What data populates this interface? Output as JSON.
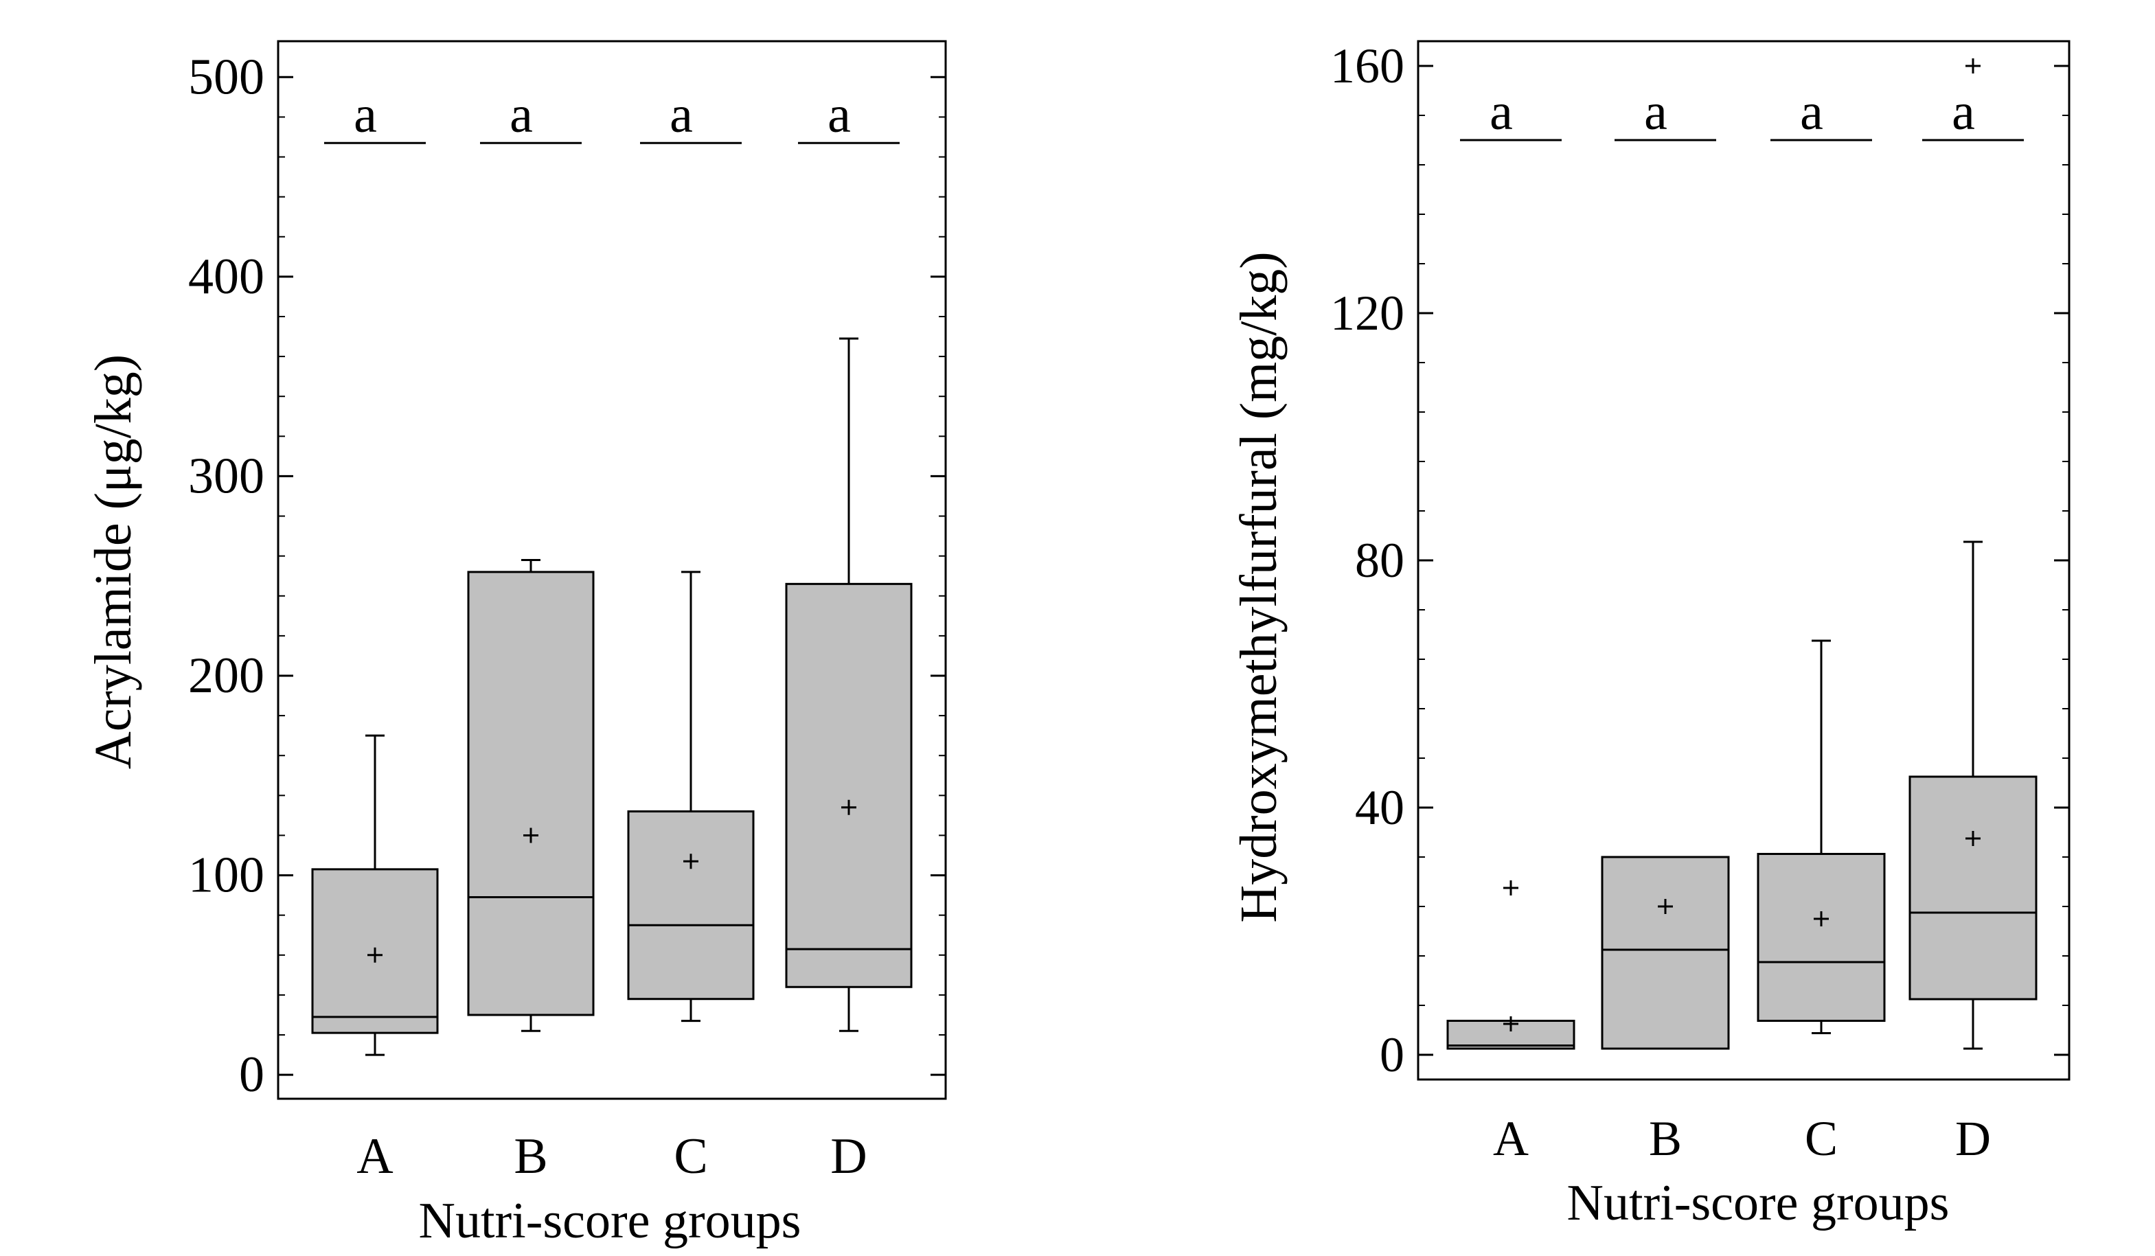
{
  "colors": {
    "box_fill": "#c0c0c0",
    "stroke": "#000000",
    "background": "#ffffff"
  },
  "chart_data": [
    {
      "type": "boxplot",
      "ylabel": "Acrylamide (μg/kg)",
      "xlabel": "Nutri-score groups",
      "categories": [
        "A",
        "B",
        "C",
        "D"
      ],
      "ylim": [
        -12,
        518
      ],
      "yticks": [
        0,
        100,
        200,
        300,
        400,
        500
      ],
      "ytick_labels": [
        "0",
        "100",
        "200",
        "300",
        "400",
        "500"
      ],
      "minor_tick_step": 20,
      "significance_letters": [
        "a",
        "a",
        "a",
        "a"
      ],
      "significance_line_value": 467,
      "boxes": [
        {
          "group": "A",
          "whisker_low": 10,
          "q1": 21,
          "median": 29,
          "q3": 103,
          "whisker_high": 170,
          "mean": 60,
          "outliers": []
        },
        {
          "group": "B",
          "whisker_low": 22,
          "q1": 30,
          "median": 89,
          "q3": 252,
          "whisker_high": 258,
          "mean": 120,
          "outliers": []
        },
        {
          "group": "C",
          "whisker_low": 27,
          "q1": 38,
          "median": 75,
          "q3": 132,
          "whisker_high": 252,
          "mean": 107,
          "outliers": []
        },
        {
          "group": "D",
          "whisker_low": 22,
          "q1": 44,
          "median": 63,
          "q3": 246,
          "whisker_high": 369,
          "mean": 134,
          "outliers": []
        }
      ]
    },
    {
      "type": "boxplot",
      "ylabel": "Hydroxymethylfurfural (mg/kg)",
      "xlabel": "Nutri-score groups",
      "categories": [
        "A",
        "B",
        "C",
        "D"
      ],
      "ylim": [
        -4,
        164
      ],
      "yticks": [
        0,
        40,
        80,
        120,
        160
      ],
      "ytick_labels": [
        "0",
        "40",
        "80",
        "120",
        "160"
      ],
      "minor_tick_step": 8,
      "significance_letters": [
        "a",
        "a",
        "a",
        "a"
      ],
      "significance_line_value": 148,
      "boxes": [
        {
          "group": "A",
          "whisker_low": 1,
          "q1": 1,
          "median": 1.5,
          "q3": 5.5,
          "whisker_high": 5.5,
          "mean": 5,
          "outliers": [
            27
          ]
        },
        {
          "group": "B",
          "whisker_low": 1,
          "q1": 1,
          "median": 17,
          "q3": 32,
          "whisker_high": 32,
          "mean": 24,
          "outliers": []
        },
        {
          "group": "C",
          "whisker_low": 3.5,
          "q1": 5.5,
          "median": 15,
          "q3": 32.5,
          "whisker_high": 67,
          "mean": 22,
          "outliers": []
        },
        {
          "group": "D",
          "whisker_low": 1,
          "q1": 9,
          "median": 23,
          "q3": 45,
          "whisker_high": 83,
          "mean": 35,
          "outliers": [
            160
          ]
        }
      ]
    }
  ]
}
